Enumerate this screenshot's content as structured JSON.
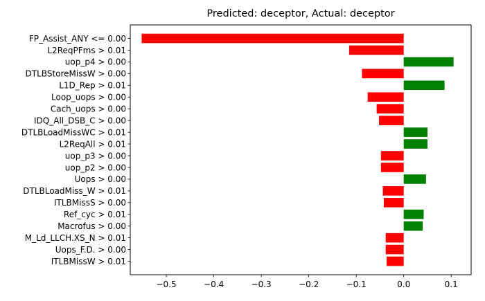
{
  "chart_data": {
    "type": "bar",
    "orientation": "horizontal",
    "title": "Predicted: deceptor, Actual: deceptor",
    "xlabel": "",
    "ylabel": "",
    "xlim": [
      -0.576,
      0.142
    ],
    "xticks": [
      -0.5,
      -0.4,
      -0.3,
      -0.2,
      -0.1,
      0.0,
      0.1
    ],
    "xtick_labels": [
      "−0.5",
      "−0.4",
      "−0.3",
      "−0.2",
      "−0.1",
      "0.0",
      "0.1"
    ],
    "grid": false,
    "colors": {
      "positive": "#008000",
      "negative": "#ff0000"
    },
    "categories": [
      "FP_Assist_ANY <= 0.00",
      "L2ReqPFms > 0.01",
      "uop_p4 > 0.00",
      "DTLBStoreMissW > 0.00",
      "L1D_Rep > 0.01",
      "Loop_uops > 0.00",
      "Cach_uops > 0.00",
      "IDQ_All_DSB_C > 0.00",
      "DTLBLoadMissWC > 0.01",
      "L2ReqAll > 0.01",
      "uop_p3 > 0.00",
      "uop_p2 > 0.00",
      "Uops > 0.00",
      "DTLBLoadMiss_W > 0.01",
      "ITLBMissS > 0.00",
      "Ref_cyc > 0.01",
      "Macrofus > 0.00",
      "M_Ld_LLCH.XS_N > 0.01",
      "Uops_F.D. > 0.00",
      "ITLBMissW > 0.01"
    ],
    "values": [
      -0.552,
      -0.115,
      0.105,
      -0.088,
      0.086,
      -0.076,
      -0.057,
      -0.052,
      0.05,
      0.05,
      -0.048,
      -0.048,
      0.047,
      -0.044,
      -0.042,
      0.042,
      0.04,
      -0.038,
      -0.038,
      -0.036
    ]
  }
}
